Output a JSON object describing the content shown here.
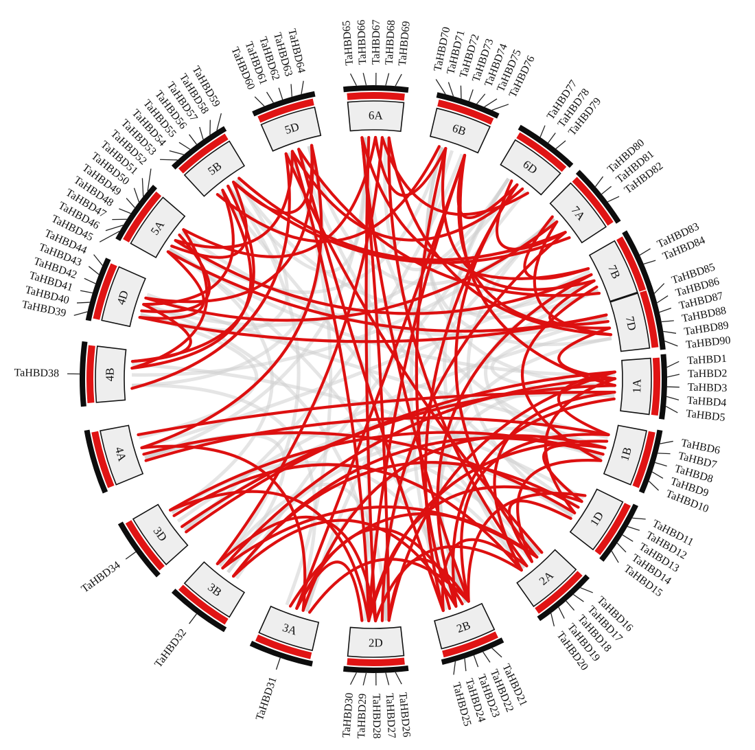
{
  "colors": {
    "background": "#ffffff",
    "chromosome_box": "#eeeeee",
    "red_band": "#e01414",
    "black_band": "#0d0d0d",
    "segmental_duplication_link": "#dd1010",
    "collinear_background_link": "#cfcfcf"
  },
  "chromosomes": [
    {
      "id": "1A",
      "label": "1A"
    },
    {
      "id": "1B",
      "label": "1B"
    },
    {
      "id": "1D",
      "label": "1D"
    },
    {
      "id": "2A",
      "label": "2A"
    },
    {
      "id": "2B",
      "label": "2B"
    },
    {
      "id": "2D",
      "label": "2D"
    },
    {
      "id": "3A",
      "label": "3A"
    },
    {
      "id": "3B",
      "label": "3B"
    },
    {
      "id": "3D",
      "label": "3D"
    },
    {
      "id": "4A",
      "label": "4A"
    },
    {
      "id": "4B",
      "label": "4B"
    },
    {
      "id": "4D",
      "label": "4D"
    },
    {
      "id": "5A",
      "label": "5A"
    },
    {
      "id": "5B",
      "label": "5B"
    },
    {
      "id": "5D",
      "label": "5D"
    },
    {
      "id": "6A",
      "label": "6A"
    },
    {
      "id": "6B",
      "label": "6B"
    },
    {
      "id": "6D",
      "label": "6D"
    },
    {
      "id": "7A",
      "label": "7A"
    },
    {
      "id": "7B",
      "label": "7B"
    },
    {
      "id": "7D",
      "label": "7D"
    }
  ],
  "genes": [
    {
      "name": "TaHBD1",
      "chr": "1A"
    },
    {
      "name": "TaHBD2",
      "chr": "1A"
    },
    {
      "name": "TaHBD3",
      "chr": "1A"
    },
    {
      "name": "TaHBD4",
      "chr": "1A"
    },
    {
      "name": "TaHBD5",
      "chr": "1A"
    },
    {
      "name": "TaHBD6",
      "chr": "1B"
    },
    {
      "name": "TaHBD7",
      "chr": "1B"
    },
    {
      "name": "TaHBD8",
      "chr": "1B"
    },
    {
      "name": "TaHBD9",
      "chr": "1B"
    },
    {
      "name": "TaHBD10",
      "chr": "1B"
    },
    {
      "name": "TaHBD11",
      "chr": "1D"
    },
    {
      "name": "TaHBD12",
      "chr": "1D"
    },
    {
      "name": "TaHBD13",
      "chr": "1D"
    },
    {
      "name": "TaHBD14",
      "chr": "1D"
    },
    {
      "name": "TaHBD15",
      "chr": "1D"
    },
    {
      "name": "TaHBD16",
      "chr": "2A"
    },
    {
      "name": "TaHBD17",
      "chr": "2A"
    },
    {
      "name": "TaHBD18",
      "chr": "2A"
    },
    {
      "name": "TaHBD19",
      "chr": "2A"
    },
    {
      "name": "TaHBD20",
      "chr": "2A"
    },
    {
      "name": "TaHBD21",
      "chr": "2B"
    },
    {
      "name": "TaHBD22",
      "chr": "2B"
    },
    {
      "name": "TaHBD23",
      "chr": "2B"
    },
    {
      "name": "TaHBD24",
      "chr": "2B"
    },
    {
      "name": "TaHBD25",
      "chr": "2B"
    },
    {
      "name": "TaHBD26",
      "chr": "2D"
    },
    {
      "name": "TaHBD27",
      "chr": "2D"
    },
    {
      "name": "TaHBD28",
      "chr": "2D"
    },
    {
      "name": "TaHBD29",
      "chr": "2D"
    },
    {
      "name": "TaHBD30",
      "chr": "2D"
    },
    {
      "name": "TaHBD31",
      "chr": "3A"
    },
    {
      "name": "TaHBD32",
      "chr": "3B"
    },
    {
      "name": "TaHBD34",
      "chr": "3D"
    },
    {
      "name": "TaHBD38",
      "chr": "4B"
    },
    {
      "name": "TaHBD39",
      "chr": "4D"
    },
    {
      "name": "TaHBD40",
      "chr": "4D"
    },
    {
      "name": "TaHBD41",
      "chr": "4D"
    },
    {
      "name": "TaHBD42",
      "chr": "4D"
    },
    {
      "name": "TaHBD43",
      "chr": "4D"
    },
    {
      "name": "TaHBD44",
      "chr": "4D"
    },
    {
      "name": "TaHBD45",
      "chr": "5A"
    },
    {
      "name": "TaHBD46",
      "chr": "5A"
    },
    {
      "name": "TaHBD47",
      "chr": "5A"
    },
    {
      "name": "TaHBD48",
      "chr": "5A"
    },
    {
      "name": "TaHBD49",
      "chr": "5A"
    },
    {
      "name": "TaHBD50",
      "chr": "5A"
    },
    {
      "name": "TaHBD51",
      "chr": "5A"
    },
    {
      "name": "TaHBD52",
      "chr": "5A"
    },
    {
      "name": "TaHBD53",
      "chr": "5B"
    },
    {
      "name": "TaHBD54",
      "chr": "5B"
    },
    {
      "name": "TaHBD55",
      "chr": "5B"
    },
    {
      "name": "TaHBD56",
      "chr": "5B"
    },
    {
      "name": "TaHBD57",
      "chr": "5B"
    },
    {
      "name": "TaHBD58",
      "chr": "5B"
    },
    {
      "name": "TaHBD59",
      "chr": "5B"
    },
    {
      "name": "TaHBD60",
      "chr": "5D"
    },
    {
      "name": "TaHBD61",
      "chr": "5D"
    },
    {
      "name": "TaHBD62",
      "chr": "5D"
    },
    {
      "name": "TaHBD63",
      "chr": "5D"
    },
    {
      "name": "TaHBD64",
      "chr": "5D"
    },
    {
      "name": "TaHBD65",
      "chr": "6A"
    },
    {
      "name": "TaHBD66",
      "chr": "6A"
    },
    {
      "name": "TaHBD67",
      "chr": "6A"
    },
    {
      "name": "TaHBD68",
      "chr": "6A"
    },
    {
      "name": "TaHBD69",
      "chr": "6A"
    },
    {
      "name": "TaHBD70",
      "chr": "6B"
    },
    {
      "name": "TaHBD71",
      "chr": "6B"
    },
    {
      "name": "TaHBD72",
      "chr": "6B"
    },
    {
      "name": "TaHBD73",
      "chr": "6B"
    },
    {
      "name": "TaHBD74",
      "chr": "6B"
    },
    {
      "name": "TaHBD75",
      "chr": "6B"
    },
    {
      "name": "TaHBD76",
      "chr": "6B"
    },
    {
      "name": "TaHBD77",
      "chr": "6D"
    },
    {
      "name": "TaHBD78",
      "chr": "6D"
    },
    {
      "name": "TaHBD79",
      "chr": "6D"
    },
    {
      "name": "TaHBD80",
      "chr": "7A"
    },
    {
      "name": "TaHBD81",
      "chr": "7A"
    },
    {
      "name": "TaHBD82",
      "chr": "7A"
    },
    {
      "name": "TaHBD83",
      "chr": "7B"
    },
    {
      "name": "TaHBD84",
      "chr": "7B"
    },
    {
      "name": "TaHBD85",
      "chr": "7D"
    },
    {
      "name": "TaHBD86",
      "chr": "7D"
    },
    {
      "name": "TaHBD87",
      "chr": "7D"
    },
    {
      "name": "TaHBD88",
      "chr": "7D"
    },
    {
      "name": "TaHBD89",
      "chr": "7D"
    },
    {
      "name": "TaHBD90",
      "chr": "7D"
    }
  ],
  "links": [
    [
      "1A",
      "1B"
    ],
    [
      "1A",
      "1D"
    ],
    [
      "1B",
      "1D"
    ],
    [
      "1A",
      "2A"
    ],
    [
      "1A",
      "2B"
    ],
    [
      "1A",
      "2D"
    ],
    [
      "1A",
      "3B"
    ],
    [
      "1A",
      "3D"
    ],
    [
      "1A",
      "4A"
    ],
    [
      "1B",
      "2A"
    ],
    [
      "1B",
      "2B"
    ],
    [
      "1B",
      "2D"
    ],
    [
      "1B",
      "3A"
    ],
    [
      "1B",
      "3D"
    ],
    [
      "1D",
      "2A"
    ],
    [
      "1D",
      "2B"
    ],
    [
      "1D",
      "2D"
    ],
    [
      "1D",
      "3B"
    ],
    [
      "2A",
      "2B"
    ],
    [
      "2A",
      "2D"
    ],
    [
      "2B",
      "2D"
    ],
    [
      "2A",
      "3A"
    ],
    [
      "2B",
      "3B"
    ],
    [
      "2D",
      "3D"
    ],
    [
      "2D",
      "3A"
    ],
    [
      "2B",
      "3A"
    ],
    [
      "2A",
      "3B"
    ],
    [
      "2D",
      "6A"
    ],
    [
      "2D",
      "6B"
    ],
    [
      "2B",
      "6D"
    ],
    [
      "2A",
      "5D"
    ],
    [
      "2D",
      "7A"
    ],
    [
      "2B",
      "7B"
    ],
    [
      "2A",
      "6A"
    ],
    [
      "2B",
      "5D"
    ],
    [
      "3D",
      "1A"
    ],
    [
      "3B",
      "1B"
    ],
    [
      "3A",
      "2B"
    ],
    [
      "3D",
      "2A"
    ],
    [
      "3B",
      "2D"
    ],
    [
      "4A",
      "1B"
    ],
    [
      "4A",
      "1D"
    ],
    [
      "4A",
      "3A"
    ],
    [
      "4B",
      "5A"
    ],
    [
      "4B",
      "5B"
    ],
    [
      "4B",
      "5D"
    ],
    [
      "4D",
      "5A"
    ],
    [
      "4D",
      "5B"
    ],
    [
      "4D",
      "5D"
    ],
    [
      "4B",
      "4D"
    ],
    [
      "4D",
      "7D"
    ],
    [
      "5A",
      "5B"
    ],
    [
      "5A",
      "5D"
    ],
    [
      "5B",
      "5D"
    ],
    [
      "5A",
      "6A"
    ],
    [
      "5B",
      "6B"
    ],
    [
      "5D",
      "6D"
    ],
    [
      "5A",
      "7B"
    ],
    [
      "5B",
      "7A"
    ],
    [
      "5D",
      "4A"
    ],
    [
      "5A",
      "4D"
    ],
    [
      "5B",
      "4B"
    ],
    [
      "6A",
      "6B"
    ],
    [
      "6A",
      "6D"
    ],
    [
      "6B",
      "6D"
    ],
    [
      "6A",
      "2D"
    ],
    [
      "6B",
      "2B"
    ],
    [
      "6D",
      "2A"
    ],
    [
      "6A",
      "3B"
    ],
    [
      "6B",
      "3A"
    ],
    [
      "7A",
      "7B"
    ],
    [
      "7A",
      "7D"
    ],
    [
      "7B",
      "7D"
    ],
    [
      "7A",
      "5B"
    ],
    [
      "7B",
      "5D"
    ],
    [
      "7D",
      "5A"
    ],
    [
      "7A",
      "4D"
    ],
    [
      "7B",
      "6B"
    ],
    [
      "7D",
      "6A"
    ],
    [
      "6B",
      "7D"
    ],
    [
      "6A",
      "7B"
    ],
    [
      "6D",
      "7A"
    ],
    [
      "7D",
      "1A"
    ],
    [
      "7B",
      "1B"
    ],
    [
      "6B",
      "1A"
    ],
    [
      "6A",
      "2B"
    ],
    [
      "5D",
      "2D"
    ]
  ]
}
